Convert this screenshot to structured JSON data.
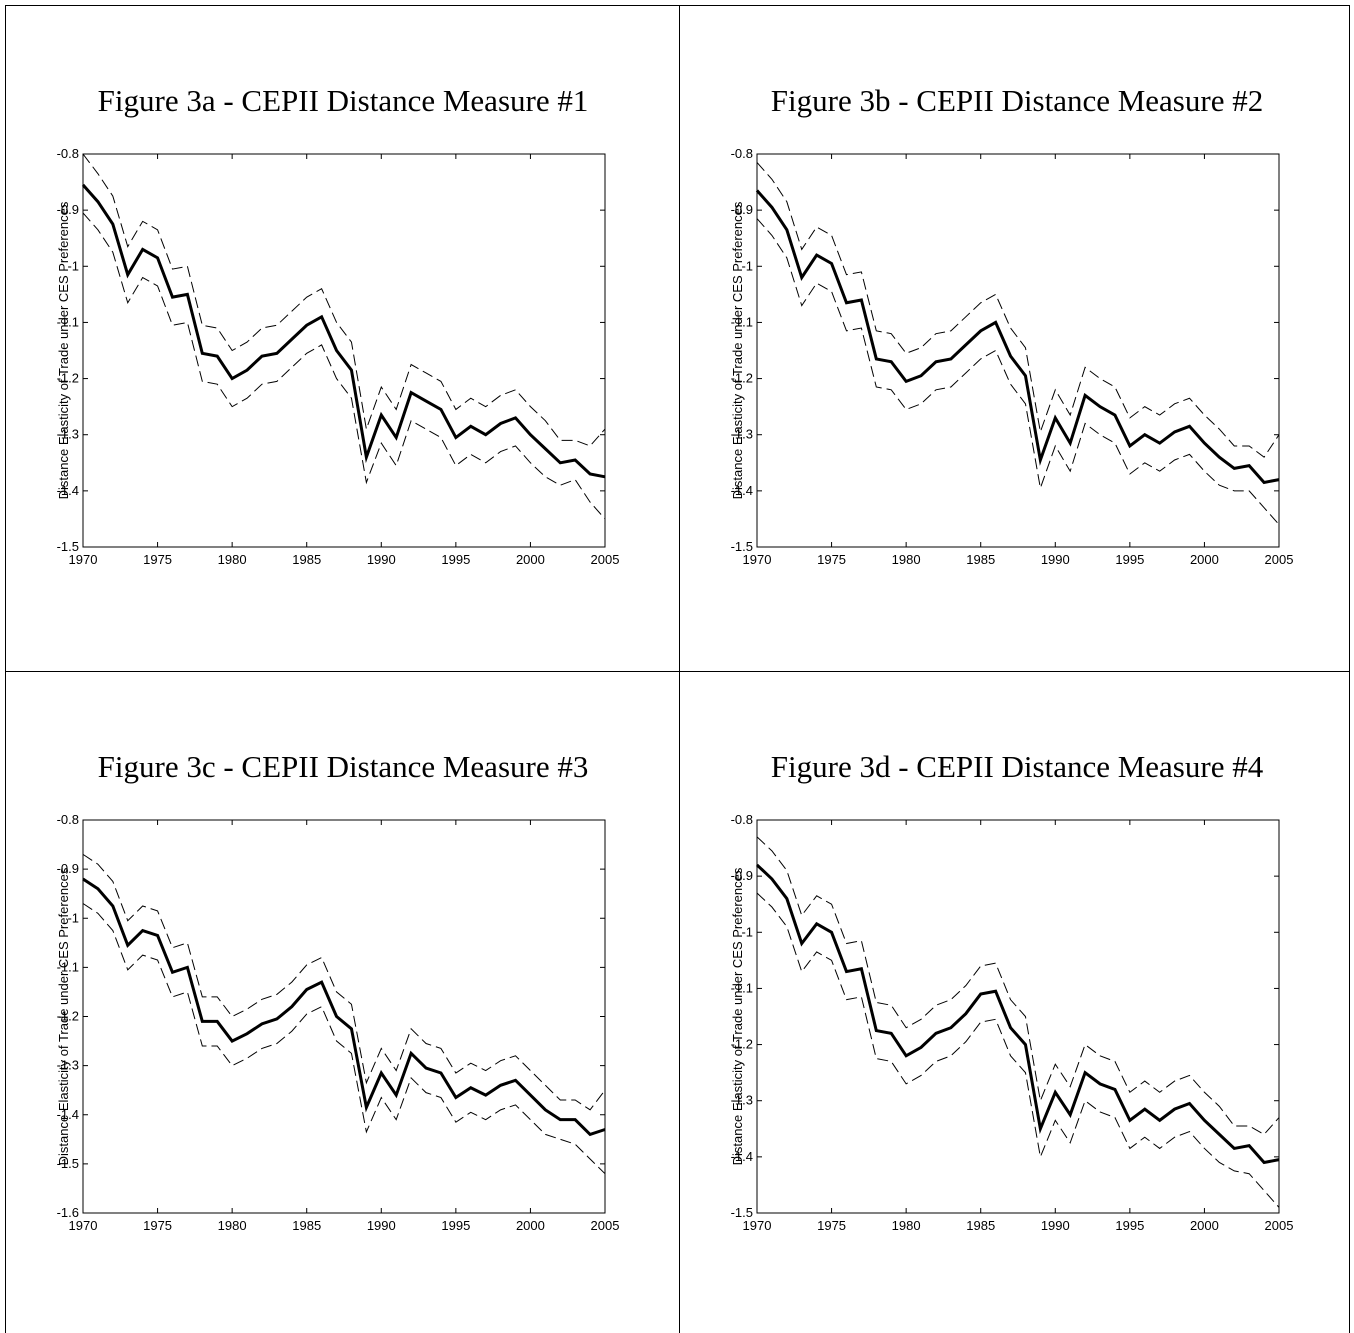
{
  "chart_data": [
    {
      "type": "line",
      "title": "Figure 3a - CEPII Distance Measure #1",
      "y_label": "Distance Elasticity of Trade under CES Preferences",
      "x": [
        1970,
        1971,
        1972,
        1973,
        1974,
        1975,
        1976,
        1977,
        1978,
        1979,
        1980,
        1981,
        1982,
        1983,
        1984,
        1985,
        1986,
        1987,
        1988,
        1989,
        1990,
        1991,
        1992,
        1993,
        1994,
        1995,
        1996,
        1997,
        1998,
        1999,
        2000,
        2001,
        2002,
        2003,
        2004,
        2005
      ],
      "xlim": [
        1970,
        2005
      ],
      "xticks": [
        1970,
        1975,
        1980,
        1985,
        1990,
        1995,
        2000,
        2005
      ],
      "ylim": [
        -1.5,
        -0.8
      ],
      "yticks": [
        -0.8,
        -0.9,
        -1,
        -1.1,
        -1.2,
        -1.3,
        -1.4,
        -1.5
      ],
      "series": [
        {
          "color": "#000000",
          "line_style": "solid",
          "values": [
            -0.855,
            -0.885,
            -0.925,
            -1.015,
            -0.97,
            -0.985,
            -1.055,
            -1.05,
            -1.155,
            -1.16,
            -1.2,
            -1.185,
            -1.16,
            -1.155,
            -1.13,
            -1.105,
            -1.09,
            -1.15,
            -1.185,
            -1.34,
            -1.265,
            -1.305,
            -1.225,
            -1.24,
            -1.255,
            -1.305,
            -1.285,
            -1.3,
            -1.28,
            -1.27,
            -1.3,
            -1.325,
            -1.35,
            -1.345,
            -1.37,
            -1.375
          ]
        },
        {
          "color": "#000000",
          "line_style": "dashed",
          "values": [
            -0.8,
            -0.835,
            -0.875,
            -0.965,
            -0.92,
            -0.935,
            -1.005,
            -1.0,
            -1.105,
            -1.11,
            -1.15,
            -1.135,
            -1.11,
            -1.105,
            -1.08,
            -1.055,
            -1.04,
            -1.1,
            -1.135,
            -1.29,
            -1.215,
            -1.255,
            -1.175,
            -1.19,
            -1.205,
            -1.255,
            -1.235,
            -1.25,
            -1.23,
            -1.22,
            -1.25,
            -1.275,
            -1.31,
            -1.31,
            -1.32,
            -1.29
          ]
        },
        {
          "color": "#000000",
          "line_style": "dashed",
          "values": [
            -0.905,
            -0.935,
            -0.975,
            -1.065,
            -1.02,
            -1.035,
            -1.105,
            -1.1,
            -1.205,
            -1.21,
            -1.25,
            -1.235,
            -1.21,
            -1.205,
            -1.18,
            -1.155,
            -1.14,
            -1.2,
            -1.235,
            -1.385,
            -1.315,
            -1.355,
            -1.275,
            -1.29,
            -1.305,
            -1.355,
            -1.335,
            -1.35,
            -1.33,
            -1.32,
            -1.35,
            -1.375,
            -1.39,
            -1.38,
            -1.42,
            -1.45
          ]
        }
      ]
    },
    {
      "type": "line",
      "title": "Figure 3b - CEPII Distance Measure #2",
      "y_label": "Distance Elasticity of Trade under CES Preferences",
      "x": [
        1970,
        1971,
        1972,
        1973,
        1974,
        1975,
        1976,
        1977,
        1978,
        1979,
        1980,
        1981,
        1982,
        1983,
        1984,
        1985,
        1986,
        1987,
        1988,
        1989,
        1990,
        1991,
        1992,
        1993,
        1994,
        1995,
        1996,
        1997,
        1998,
        1999,
        2000,
        2001,
        2002,
        2003,
        2004,
        2005
      ],
      "xlim": [
        1970,
        2005
      ],
      "xticks": [
        1970,
        1975,
        1980,
        1985,
        1990,
        1995,
        2000,
        2005
      ],
      "ylim": [
        -1.5,
        -0.8
      ],
      "yticks": [
        -0.8,
        -0.9,
        -1,
        -1.1,
        -1.2,
        -1.3,
        -1.4,
        -1.5
      ],
      "series": [
        {
          "color": "#000000",
          "line_style": "solid",
          "values": [
            -0.865,
            -0.895,
            -0.935,
            -1.02,
            -0.98,
            -0.995,
            -1.065,
            -1.06,
            -1.165,
            -1.17,
            -1.205,
            -1.195,
            -1.17,
            -1.165,
            -1.14,
            -1.115,
            -1.1,
            -1.16,
            -1.195,
            -1.345,
            -1.27,
            -1.315,
            -1.23,
            -1.25,
            -1.265,
            -1.32,
            -1.3,
            -1.315,
            -1.295,
            -1.285,
            -1.315,
            -1.34,
            -1.36,
            -1.355,
            -1.385,
            -1.38
          ]
        },
        {
          "color": "#000000",
          "line_style": "dashed",
          "values": [
            -0.815,
            -0.845,
            -0.885,
            -0.97,
            -0.93,
            -0.945,
            -1.015,
            -1.01,
            -1.115,
            -1.12,
            -1.155,
            -1.145,
            -1.12,
            -1.115,
            -1.09,
            -1.065,
            -1.05,
            -1.11,
            -1.145,
            -1.295,
            -1.22,
            -1.265,
            -1.18,
            -1.2,
            -1.215,
            -1.27,
            -1.25,
            -1.265,
            -1.245,
            -1.235,
            -1.265,
            -1.29,
            -1.32,
            -1.32,
            -1.34,
            -1.3
          ]
        },
        {
          "color": "#000000",
          "line_style": "dashed",
          "values": [
            -0.915,
            -0.945,
            -0.985,
            -1.07,
            -1.03,
            -1.045,
            -1.115,
            -1.11,
            -1.215,
            -1.22,
            -1.255,
            -1.245,
            -1.22,
            -1.215,
            -1.19,
            -1.165,
            -1.15,
            -1.21,
            -1.245,
            -1.395,
            -1.32,
            -1.365,
            -1.28,
            -1.3,
            -1.315,
            -1.37,
            -1.35,
            -1.365,
            -1.345,
            -1.335,
            -1.365,
            -1.39,
            -1.4,
            -1.4,
            -1.43,
            -1.46
          ]
        }
      ]
    },
    {
      "type": "line",
      "title": "Figure 3c - CEPII Distance Measure #3",
      "y_label": "Distance Elasticity of Trade under CES Preferences",
      "x": [
        1970,
        1971,
        1972,
        1973,
        1974,
        1975,
        1976,
        1977,
        1978,
        1979,
        1980,
        1981,
        1982,
        1983,
        1984,
        1985,
        1986,
        1987,
        1988,
        1989,
        1990,
        1991,
        1992,
        1993,
        1994,
        1995,
        1996,
        1997,
        1998,
        1999,
        2000,
        2001,
        2002,
        2003,
        2004,
        2005
      ],
      "xlim": [
        1970,
        2005
      ],
      "xticks": [
        1970,
        1975,
        1980,
        1985,
        1990,
        1995,
        2000,
        2005
      ],
      "ylim": [
        -1.6,
        -0.8
      ],
      "yticks": [
        -0.8,
        -0.9,
        -1,
        -1.1,
        -1.2,
        -1.3,
        -1.4,
        -1.5,
        -1.6
      ],
      "series": [
        {
          "color": "#000000",
          "line_style": "solid",
          "values": [
            -0.92,
            -0.94,
            -0.975,
            -1.055,
            -1.025,
            -1.035,
            -1.11,
            -1.1,
            -1.21,
            -1.21,
            -1.25,
            -1.235,
            -1.215,
            -1.205,
            -1.18,
            -1.145,
            -1.13,
            -1.2,
            -1.225,
            -1.385,
            -1.315,
            -1.36,
            -1.275,
            -1.305,
            -1.315,
            -1.365,
            -1.345,
            -1.36,
            -1.34,
            -1.33,
            -1.36,
            -1.39,
            -1.41,
            -1.41,
            -1.44,
            -1.43
          ]
        },
        {
          "color": "#000000",
          "line_style": "dashed",
          "values": [
            -0.87,
            -0.89,
            -0.925,
            -1.005,
            -0.975,
            -0.985,
            -1.06,
            -1.05,
            -1.16,
            -1.16,
            -1.2,
            -1.185,
            -1.165,
            -1.155,
            -1.13,
            -1.095,
            -1.08,
            -1.15,
            -1.175,
            -1.335,
            -1.265,
            -1.31,
            -1.225,
            -1.255,
            -1.265,
            -1.315,
            -1.295,
            -1.31,
            -1.29,
            -1.28,
            -1.31,
            -1.34,
            -1.37,
            -1.37,
            -1.39,
            -1.35
          ]
        },
        {
          "color": "#000000",
          "line_style": "dashed",
          "values": [
            -0.97,
            -0.99,
            -1.025,
            -1.105,
            -1.075,
            -1.085,
            -1.16,
            -1.15,
            -1.26,
            -1.26,
            -1.3,
            -1.285,
            -1.265,
            -1.255,
            -1.23,
            -1.195,
            -1.18,
            -1.25,
            -1.275,
            -1.435,
            -1.365,
            -1.41,
            -1.325,
            -1.355,
            -1.365,
            -1.415,
            -1.395,
            -1.41,
            -1.39,
            -1.38,
            -1.41,
            -1.44,
            -1.45,
            -1.46,
            -1.49,
            -1.52
          ]
        }
      ]
    },
    {
      "type": "line",
      "title": "Figure 3d - CEPII Distance Measure #4",
      "y_label": "Distance Elasticity of Trade under CES Preferences",
      "x": [
        1970,
        1971,
        1972,
        1973,
        1974,
        1975,
        1976,
        1977,
        1978,
        1979,
        1980,
        1981,
        1982,
        1983,
        1984,
        1985,
        1986,
        1987,
        1988,
        1989,
        1990,
        1991,
        1992,
        1993,
        1994,
        1995,
        1996,
        1997,
        1998,
        1999,
        2000,
        2001,
        2002,
        2003,
        2004,
        2005
      ],
      "xlim": [
        1970,
        2005
      ],
      "xticks": [
        1970,
        1975,
        1980,
        1985,
        1990,
        1995,
        2000,
        2005
      ],
      "ylim": [
        -1.5,
        -0.8
      ],
      "yticks": [
        -0.8,
        -0.9,
        -1,
        -1.1,
        -1.2,
        -1.3,
        -1.4,
        -1.5
      ],
      "series": [
        {
          "color": "#000000",
          "line_style": "solid",
          "values": [
            -0.88,
            -0.905,
            -0.94,
            -1.02,
            -0.985,
            -1.0,
            -1.07,
            -1.065,
            -1.175,
            -1.18,
            -1.22,
            -1.205,
            -1.18,
            -1.17,
            -1.145,
            -1.11,
            -1.105,
            -1.17,
            -1.2,
            -1.35,
            -1.285,
            -1.325,
            -1.25,
            -1.27,
            -1.28,
            -1.335,
            -1.315,
            -1.335,
            -1.315,
            -1.305,
            -1.335,
            -1.36,
            -1.385,
            -1.38,
            -1.41,
            -1.405
          ]
        },
        {
          "color": "#000000",
          "line_style": "dashed",
          "values": [
            -0.83,
            -0.855,
            -0.89,
            -0.97,
            -0.935,
            -0.95,
            -1.02,
            -1.015,
            -1.125,
            -1.13,
            -1.17,
            -1.155,
            -1.13,
            -1.12,
            -1.095,
            -1.06,
            -1.055,
            -1.12,
            -1.15,
            -1.3,
            -1.235,
            -1.275,
            -1.2,
            -1.22,
            -1.23,
            -1.285,
            -1.265,
            -1.285,
            -1.265,
            -1.255,
            -1.285,
            -1.31,
            -1.345,
            -1.345,
            -1.36,
            -1.33
          ]
        },
        {
          "color": "#000000",
          "line_style": "dashed",
          "values": [
            -0.93,
            -0.955,
            -0.99,
            -1.07,
            -1.035,
            -1.05,
            -1.12,
            -1.115,
            -1.225,
            -1.23,
            -1.27,
            -1.255,
            -1.23,
            -1.22,
            -1.195,
            -1.16,
            -1.155,
            -1.22,
            -1.25,
            -1.4,
            -1.335,
            -1.375,
            -1.3,
            -1.32,
            -1.33,
            -1.385,
            -1.365,
            -1.385,
            -1.365,
            -1.355,
            -1.385,
            -1.41,
            -1.425,
            -1.43,
            -1.46,
            -1.49
          ]
        }
      ]
    }
  ]
}
